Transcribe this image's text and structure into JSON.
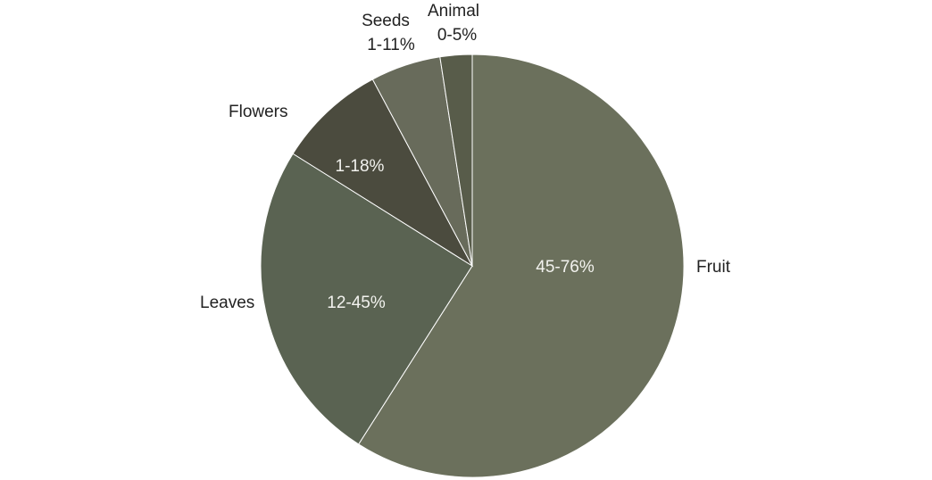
{
  "chart_data": {
    "type": "pie",
    "title": "",
    "start": "top",
    "direction": "clockwise",
    "slices": [
      {
        "name": "Fruit",
        "label": "45-76%",
        "value": 60.5,
        "color": "#6b705c"
      },
      {
        "name": "Leaves",
        "label": "12-45%",
        "value": 25.5,
        "color": "#5a6352"
      },
      {
        "name": "Flowers",
        "label": "1-18%",
        "value": 8.5,
        "color": "#4b4b3e"
      },
      {
        "name": "Seeds",
        "label": "1-11%",
        "value": 5.5,
        "color": "#686b5b"
      },
      {
        "name": "Animal",
        "label": "0-5%",
        "value": 2.5,
        "color": "#585c4a"
      }
    ]
  }
}
